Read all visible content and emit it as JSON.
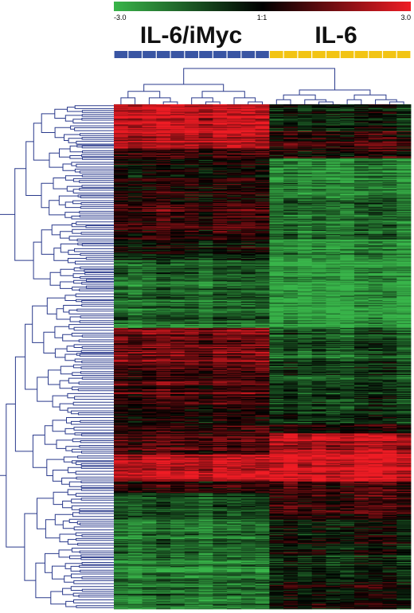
{
  "chart_data": {
    "type": "heatmap",
    "title": "",
    "color_scale": {
      "min_label": "-3.0",
      "mid_label": "1:1",
      "max_label": "3.0",
      "min": -3.0,
      "mid": 0,
      "max": 3.0,
      "low_color": "#39b54a",
      "mid_color": "#000000",
      "high_color": "#ee1c24"
    },
    "groups": [
      {
        "name": "IL-6/iMyc",
        "samples": 11,
        "color": "#3955a3"
      },
      {
        "name": "IL-6",
        "samples": 10,
        "color": "#f2c414"
      }
    ],
    "row_blocks": [
      {
        "rows": 28,
        "g1": 2.4,
        "g2": -0.6
      },
      {
        "rows": 18,
        "g1": 2.2,
        "g2": 0.6
      },
      {
        "rows": 10,
        "g1": 0.8,
        "g2": 0.4
      },
      {
        "rows": 45,
        "g1": 0.1,
        "g2": -2.2
      },
      {
        "rows": 40,
        "g1": 0.5,
        "g2": -1.8
      },
      {
        "rows": 22,
        "g1": -0.4,
        "g2": -2.3
      },
      {
        "rows": 30,
        "g1": -1.6,
        "g2": -2.6
      },
      {
        "rows": 40,
        "g1": -1.8,
        "g2": -2.7
      },
      {
        "rows": 35,
        "g1": 1.3,
        "g2": -1.3
      },
      {
        "rows": 45,
        "g1": 0.9,
        "g2": -1.0
      },
      {
        "rows": 20,
        "g1": 0.2,
        "g2": -0.9
      },
      {
        "rows": 10,
        "g1": 0.4,
        "g2": 0.2
      },
      {
        "rows": 22,
        "g1": 0.8,
        "g2": 2.2
      },
      {
        "rows": 28,
        "g1": 2.2,
        "g2": 2.8
      },
      {
        "rows": 12,
        "g1": 0.3,
        "g2": 0.6
      },
      {
        "rows": 28,
        "g1": -1.4,
        "g2": 0.6
      },
      {
        "rows": 35,
        "g1": -1.9,
        "g2": -0.2
      },
      {
        "rows": 28,
        "g1": -2.3,
        "g2": -0.6
      },
      {
        "rows": 30,
        "g1": -2.0,
        "g2": 0.0
      }
    ]
  }
}
